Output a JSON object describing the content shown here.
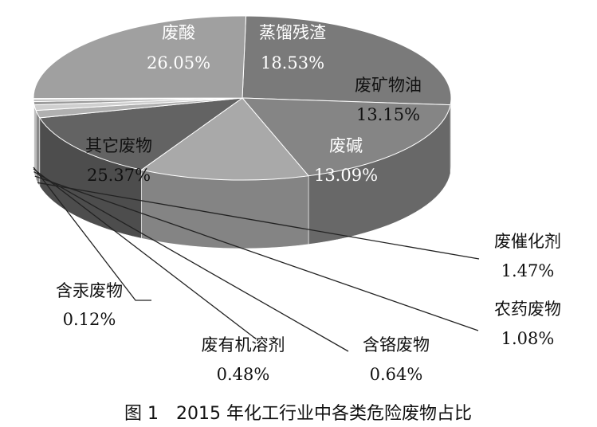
{
  "chart_data": {
    "type": "pie",
    "title": "",
    "categories": [
      "废酸",
      "蒸馏残渣",
      "废矿物油",
      "废碱",
      "废催化剂",
      "农药废物",
      "含铬废物",
      "废有机溶剂",
      "含汞废物",
      "其它废物"
    ],
    "values": [
      26.05,
      18.53,
      13.15,
      13.09,
      1.47,
      1.08,
      0.64,
      0.48,
      0.12,
      25.37
    ],
    "value_labels": [
      "26.05%",
      "18.53%",
      "13.15%",
      "13.09%",
      "1.47%",
      "1.08%",
      "0.64%",
      "0.48%",
      "0.12%",
      "25.37%"
    ],
    "unit": "%",
    "style": "3d-grayscale",
    "colors": [
      "#7a7a7a",
      "#858585",
      "#a9a9a9",
      "#636363",
      "#b0b0b0",
      "#cfcfcf",
      "#9a9a9a",
      "#bdbdbd",
      "#e0e0e0",
      "#a0a0a0"
    ]
  },
  "caption": "图 1　2015 年化工行业中各类危险废物占比"
}
